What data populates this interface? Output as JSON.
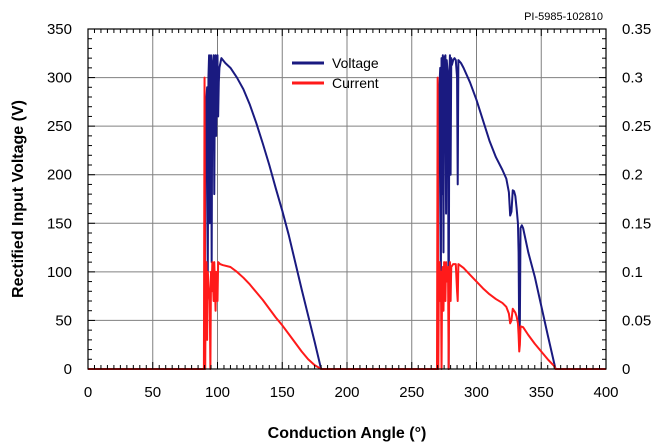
{
  "chart_data": {
    "type": "line",
    "title": "",
    "reference_label": "PI-5985-102810",
    "xlabel": "Conduction Angle (°)",
    "ylabel": "Rectified Input Voltage (V)",
    "y2label": "",
    "xlim": [
      0,
      400
    ],
    "ylim": [
      0,
      350
    ],
    "y2lim": [
      0,
      0.35
    ],
    "x_ticks": [
      0,
      50,
      100,
      150,
      200,
      250,
      300,
      350,
      400
    ],
    "y_ticks": [
      0,
      50,
      100,
      150,
      200,
      250,
      300,
      350
    ],
    "y2_ticks": [
      "0",
      "0.05",
      "0.1",
      "0.15",
      "0.2",
      "0.25",
      "0.3",
      "0.35"
    ],
    "grid": true,
    "legend_position": "top-center",
    "series": [
      {
        "name": "Voltage",
        "color": "#1a1a80",
        "axis": "left",
        "points": [
          [
            90,
            0
          ],
          [
            91,
            270
          ],
          [
            92,
            290
          ],
          [
            92.5,
            100
          ],
          [
            93,
            300
          ],
          [
            93.5,
            323
          ],
          [
            94,
            150
          ],
          [
            94.5,
            290
          ],
          [
            95,
            323
          ],
          [
            95.5,
            110
          ],
          [
            96,
            310
          ],
          [
            97,
            323
          ],
          [
            97.5,
            180
          ],
          [
            98,
            300
          ],
          [
            98.5,
            323
          ],
          [
            99,
            240
          ],
          [
            99.5,
            305
          ],
          [
            100,
            323
          ],
          [
            100.5,
            260
          ],
          [
            101,
            295
          ],
          [
            101.5,
            310
          ],
          [
            103,
            320
          ],
          [
            106,
            315
          ],
          [
            110,
            310
          ],
          [
            115,
            300
          ],
          [
            120,
            288
          ],
          [
            125,
            272
          ],
          [
            130,
            253
          ],
          [
            135,
            232
          ],
          [
            140,
            210
          ],
          [
            145,
            186
          ],
          [
            150,
            163
          ],
          [
            155,
            138
          ],
          [
            160,
            110
          ],
          [
            165,
            82
          ],
          [
            170,
            55
          ],
          [
            175,
            28
          ],
          [
            180,
            0
          ],
          [
            270,
            0
          ],
          [
            271,
            280
          ],
          [
            272,
            310
          ],
          [
            272.5,
            100
          ],
          [
            273,
            320
          ],
          [
            273.5,
            180
          ],
          [
            274,
            323
          ],
          [
            274.5,
            120
          ],
          [
            275,
            320
          ],
          [
            276,
            323
          ],
          [
            276.5,
            160
          ],
          [
            277,
            318
          ],
          [
            278,
            300
          ],
          [
            278.5,
            0
          ],
          [
            279,
            300
          ],
          [
            279.5,
            323
          ],
          [
            280,
            200
          ],
          [
            280.5,
            320
          ],
          [
            281,
            313
          ],
          [
            282,
            318
          ],
          [
            283,
            320
          ],
          [
            284,
            318
          ],
          [
            285,
            300
          ],
          [
            285.5,
            190
          ],
          [
            286,
            318
          ],
          [
            288,
            315
          ],
          [
            290,
            310
          ],
          [
            295,
            295
          ],
          [
            300,
            277
          ],
          [
            305,
            256
          ],
          [
            310,
            235
          ],
          [
            315,
            218
          ],
          [
            320,
            205
          ],
          [
            323,
            196
          ],
          [
            325,
            182
          ],
          [
            326,
            158
          ],
          [
            327,
            162
          ],
          [
            328,
            184
          ],
          [
            329,
            183
          ],
          [
            330,
            178
          ],
          [
            331,
            165
          ],
          [
            332,
            150
          ],
          [
            332.5,
            120
          ],
          [
            333,
            30
          ],
          [
            333.5,
            50
          ],
          [
            334,
            145
          ],
          [
            335,
            148
          ],
          [
            336,
            145
          ],
          [
            340,
            120
          ],
          [
            345,
            95
          ],
          [
            350,
            65
          ],
          [
            355,
            35
          ],
          [
            361,
            0
          ]
        ]
      },
      {
        "name": "Current",
        "color": "#ff1a1a",
        "axis": "right",
        "points": [
          [
            0,
            0
          ],
          [
            89.5,
            0
          ],
          [
            90,
            0.3
          ],
          [
            90.5,
            0
          ],
          [
            91,
            0.1
          ],
          [
            91.5,
            0.11
          ],
          [
            92,
            0.03
          ],
          [
            92.5,
            0.1
          ],
          [
            93,
            0.09
          ],
          [
            94,
            0.07
          ],
          [
            94.5,
            0
          ],
          [
            95,
            0.1
          ],
          [
            95.5,
            0.08
          ],
          [
            96,
            0.11
          ],
          [
            97,
            0.07
          ],
          [
            97.5,
            0.11
          ],
          [
            98,
            0.09
          ],
          [
            98.5,
            0.06
          ],
          [
            99,
            0.1
          ],
          [
            100,
            0.07
          ],
          [
            100.5,
            0.11
          ],
          [
            102,
            0.108
          ],
          [
            104,
            0.107
          ],
          [
            110,
            0.105
          ],
          [
            115,
            0.1
          ],
          [
            120,
            0.094
          ],
          [
            125,
            0.087
          ],
          [
            130,
            0.079
          ],
          [
            135,
            0.071
          ],
          [
            140,
            0.062
          ],
          [
            145,
            0.053
          ],
          [
            150,
            0.045
          ],
          [
            155,
            0.036
          ],
          [
            160,
            0.027
          ],
          [
            165,
            0.018
          ],
          [
            170,
            0.01
          ],
          [
            175,
            0.004
          ],
          [
            180,
            0
          ],
          [
            269.5,
            0
          ],
          [
            270,
            0.3
          ],
          [
            270.5,
            0
          ],
          [
            271,
            0.1
          ],
          [
            271.5,
            0.11
          ],
          [
            272,
            0.07
          ],
          [
            272.5,
            0.1
          ],
          [
            273,
            0
          ],
          [
            273.5,
            0.1
          ],
          [
            274,
            0.105
          ],
          [
            274.5,
            0.06
          ],
          [
            275,
            0.11
          ],
          [
            276,
            0.07
          ],
          [
            276.5,
            0.11
          ],
          [
            277,
            0.09
          ],
          [
            278,
            0.105
          ],
          [
            278.5,
            0
          ],
          [
            279,
            0.1
          ],
          [
            279.5,
            0.11
          ],
          [
            280,
            0.07
          ],
          [
            280.5,
            0.105
          ],
          [
            282,
            0.108
          ],
          [
            284,
            0.108
          ],
          [
            285,
            0.08
          ],
          [
            285.5,
            0.07
          ],
          [
            286,
            0.108
          ],
          [
            290,
            0.104
          ],
          [
            295,
            0.097
          ],
          [
            300,
            0.09
          ],
          [
            305,
            0.083
          ],
          [
            310,
            0.077
          ],
          [
            315,
            0.072
          ],
          [
            320,
            0.068
          ],
          [
            323,
            0.064
          ],
          [
            325,
            0.057
          ],
          [
            326,
            0.047
          ],
          [
            327,
            0.05
          ],
          [
            328,
            0.062
          ],
          [
            329,
            0.06
          ],
          [
            330,
            0.058
          ],
          [
            331,
            0.054
          ],
          [
            332,
            0.047
          ],
          [
            332.5,
            0.035
          ],
          [
            333,
            0.018
          ],
          [
            333.5,
            0.025
          ],
          [
            334,
            0.044
          ],
          [
            336,
            0.043
          ],
          [
            340,
            0.035
          ],
          [
            345,
            0.026
          ],
          [
            350,
            0.018
          ],
          [
            355,
            0.01
          ],
          [
            360,
            0.003
          ],
          [
            361,
            0
          ],
          [
            400,
            0
          ]
        ]
      }
    ]
  }
}
